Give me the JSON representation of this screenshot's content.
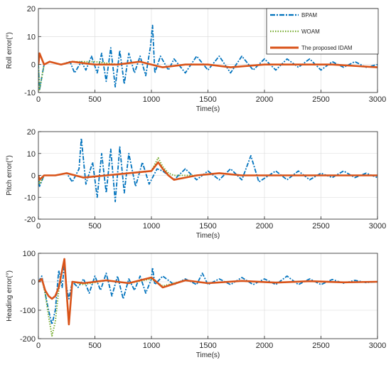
{
  "colors": {
    "bpam": "#0072BD",
    "woam": "#77AC30",
    "idam": "#D95319",
    "axis": "#262626",
    "grid": "#d8d8d8"
  },
  "legend": {
    "placement": "top-right",
    "entries": [
      {
        "label": "BPAM",
        "style": "dash-dot",
        "color": "#0072BD"
      },
      {
        "label": "WOAM",
        "style": "dotted",
        "color": "#77AC30"
      },
      {
        "label": "The proposed IDAM",
        "style": "solid",
        "color": "#D95319"
      }
    ]
  },
  "chart_data": [
    {
      "type": "line",
      "title": "",
      "xlabel": "Time(s)",
      "ylabel": "Roll error(°)",
      "xlim": [
        0,
        3000
      ],
      "ylim": [
        -10,
        20
      ],
      "xticks": [
        0,
        500,
        1000,
        1500,
        2000,
        2500,
        3000
      ],
      "yticks": [
        -10,
        0,
        10,
        20
      ],
      "grid": true,
      "series": [
        {
          "name": "BPAM",
          "x": [
            0,
            10,
            50,
            100,
            200,
            280,
            320,
            380,
            420,
            470,
            520,
            560,
            600,
            640,
            680,
            720,
            760,
            800,
            850,
            900,
            950,
            990,
            1010,
            1030,
            1080,
            1150,
            1200,
            1300,
            1400,
            1500,
            1600,
            1700,
            1800,
            1900,
            2000,
            2100,
            2200,
            2300,
            2400,
            2500,
            2600,
            2700,
            2800,
            2900,
            3000
          ],
          "y": [
            0,
            -9,
            0,
            1,
            0,
            1,
            -3,
            1,
            -2,
            3,
            -3,
            4,
            -6,
            6,
            -8,
            5,
            -7,
            4,
            -3,
            3,
            -4,
            6,
            14,
            -3,
            3,
            -2,
            2,
            -3,
            3,
            -2,
            3,
            -3,
            3,
            -2,
            2,
            -2,
            2,
            -1,
            2,
            -2,
            1,
            -1,
            1,
            -1,
            0
          ]
        },
        {
          "name": "WOAM",
          "x": [
            0,
            10,
            50,
            100,
            200,
            300,
            500,
            700,
            900,
            1000,
            1100,
            1300,
            1500,
            1700,
            2000,
            2300,
            2600,
            3000
          ],
          "y": [
            0,
            -9,
            0,
            1,
            0,
            1,
            1,
            0,
            1,
            0,
            -1,
            0,
            0,
            -1,
            0,
            0,
            0,
            -1
          ]
        },
        {
          "name": "The proposed IDAM",
          "x": [
            0,
            10,
            50,
            100,
            200,
            300,
            500,
            700,
            900,
            1000,
            1100,
            1300,
            1500,
            1700,
            2000,
            2300,
            2600,
            3000
          ],
          "y": [
            0,
            4,
            0,
            1,
            0,
            1,
            0,
            0,
            1,
            0,
            -1,
            0,
            0,
            -1,
            0,
            0,
            0,
            -1
          ]
        }
      ]
    },
    {
      "type": "line",
      "title": "",
      "xlabel": "Time(s)",
      "ylabel": "Pitch error(°)",
      "xlim": [
        0,
        3000
      ],
      "ylim": [
        -20,
        20
      ],
      "xticks": [
        0,
        500,
        1000,
        1500,
        2000,
        2500,
        3000
      ],
      "yticks": [
        -20,
        -10,
        0,
        10,
        20
      ],
      "grid": true,
      "series": [
        {
          "name": "BPAM",
          "x": [
            0,
            10,
            50,
            150,
            250,
            300,
            360,
            380,
            420,
            480,
            520,
            560,
            600,
            640,
            680,
            720,
            760,
            800,
            860,
            920,
            980,
            1050,
            1100,
            1200,
            1300,
            1400,
            1500,
            1600,
            1700,
            1800,
            1880,
            1950,
            2100,
            2200,
            2300,
            2400,
            2500,
            2600,
            2700,
            2800,
            2900,
            3000
          ],
          "y": [
            0,
            -5,
            0,
            0,
            1,
            -3,
            3,
            17,
            -4,
            6,
            -10,
            10,
            -8,
            12,
            -12,
            13,
            -8,
            10,
            -5,
            6,
            -4,
            3,
            2,
            -2,
            3,
            -2,
            2,
            -2,
            3,
            -2,
            9,
            -3,
            2,
            -2,
            2,
            -2,
            1,
            -1,
            2,
            -1,
            1,
            -1
          ]
        },
        {
          "name": "WOAM",
          "x": [
            0,
            10,
            50,
            150,
            250,
            400,
            600,
            800,
            1000,
            1060,
            1100,
            1150,
            1200,
            1400,
            1600,
            1800,
            2000,
            2300,
            2600,
            3000
          ],
          "y": [
            0,
            -4,
            0,
            0,
            1,
            -1,
            0,
            1,
            2,
            8,
            4,
            1,
            0,
            0,
            1,
            0,
            0,
            0,
            0,
            0
          ]
        },
        {
          "name": "The proposed IDAM",
          "x": [
            0,
            10,
            50,
            150,
            250,
            400,
            600,
            800,
            1000,
            1060,
            1100,
            1150,
            1200,
            1400,
            1600,
            1800,
            2000,
            2300,
            2600,
            3000
          ],
          "y": [
            0,
            -2,
            0,
            0,
            1,
            -1,
            0,
            1,
            2,
            6,
            3,
            0,
            -2,
            0,
            1,
            0,
            0,
            0,
            0,
            0
          ]
        }
      ]
    },
    {
      "type": "line",
      "title": "",
      "xlabel": "Time(s)",
      "ylabel": "Heading error(°)",
      "xlim": [
        0,
        3000
      ],
      "ylim": [
        -200,
        100
      ],
      "xticks": [
        0,
        500,
        1000,
        1500,
        2000,
        2500,
        3000
      ],
      "yticks": [
        -200,
        -100,
        0,
        100
      ],
      "grid": true,
      "series": [
        {
          "name": "BPAM",
          "x": [
            0,
            30,
            60,
            90,
            120,
            150,
            180,
            210,
            230,
            250,
            270,
            300,
            350,
            400,
            450,
            500,
            550,
            600,
            650,
            700,
            750,
            800,
            850,
            900,
            950,
            1000,
            1010,
            1030,
            1100,
            1200,
            1300,
            1400,
            1450,
            1500,
            1600,
            1700,
            1800,
            1900,
            2000,
            2100,
            2200,
            2300,
            2400,
            2500,
            2600,
            2700,
            2800,
            2900,
            3000
          ],
          "y": [
            0,
            20,
            -40,
            -100,
            -150,
            -100,
            40,
            -20,
            60,
            -20,
            -60,
            0,
            -20,
            10,
            -40,
            20,
            -30,
            30,
            -50,
            20,
            -60,
            10,
            -30,
            20,
            -40,
            10,
            50,
            -10,
            20,
            -10,
            10,
            -10,
            30,
            -10,
            10,
            -10,
            15,
            -10,
            10,
            -10,
            20,
            -10,
            10,
            -10,
            8,
            -5,
            5,
            -3,
            0
          ]
        },
        {
          "name": "WOAM",
          "x": [
            0,
            30,
            60,
            90,
            120,
            150,
            180,
            210,
            230,
            250,
            270,
            300,
            400,
            600,
            800,
            1000,
            1100,
            1300,
            1500,
            1800,
            2100,
            2400,
            2700,
            3000
          ],
          "y": [
            0,
            10,
            -40,
            -120,
            -190,
            -140,
            -30,
            40,
            80,
            -50,
            -150,
            0,
            -10,
            5,
            -5,
            10,
            -15,
            5,
            -5,
            3,
            -3,
            2,
            -2,
            0
          ]
        },
        {
          "name": "The proposed IDAM",
          "x": [
            0,
            30,
            60,
            90,
            120,
            150,
            180,
            210,
            230,
            250,
            270,
            300,
            400,
            600,
            800,
            1000,
            1100,
            1300,
            1500,
            1800,
            2100,
            2400,
            2700,
            3000
          ],
          "y": [
            0,
            10,
            -30,
            -50,
            -60,
            -50,
            -20,
            40,
            80,
            -40,
            -150,
            0,
            -5,
            5,
            -5,
            15,
            -20,
            5,
            -5,
            3,
            -3,
            2,
            -2,
            0
          ]
        }
      ]
    }
  ]
}
